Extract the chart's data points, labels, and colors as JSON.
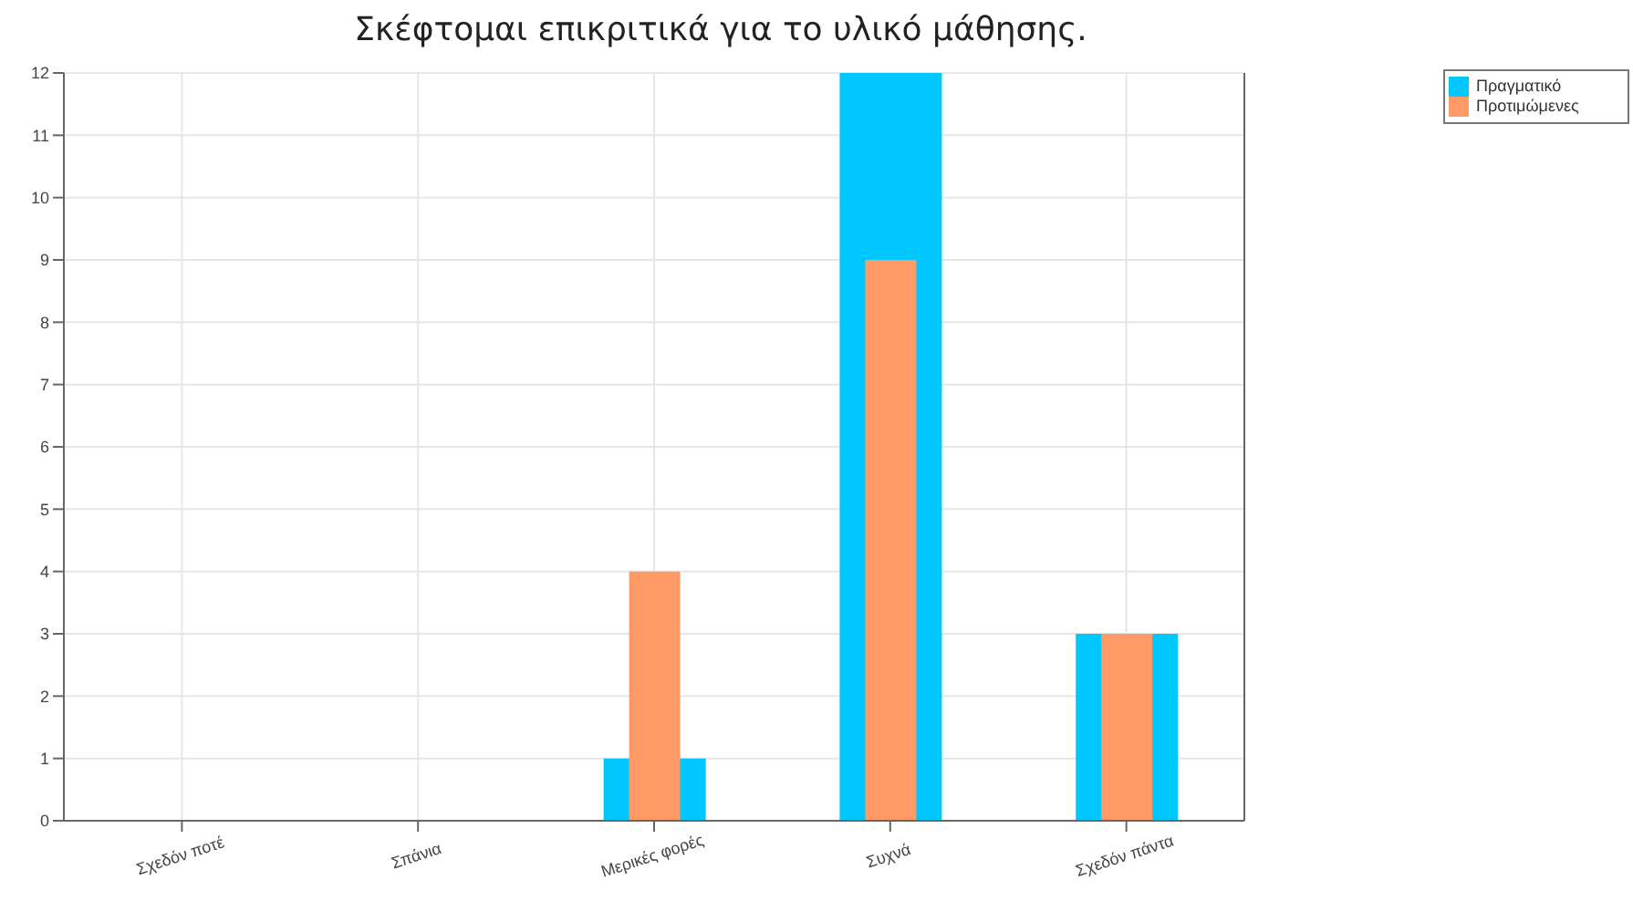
{
  "chart_data": {
    "type": "bar",
    "title": "Σκέφτομαι επικριτικά για το υλικό μάθησης.",
    "categories": [
      "Σχεδόν ποτέ",
      "Σπάνια",
      "Μερικές φορές",
      "Συχνά",
      "Σχεδόν πάντα"
    ],
    "series": [
      {
        "name": "Πραγματικό",
        "color": "#00c8ff",
        "values": [
          0,
          0,
          1,
          12,
          3
        ]
      },
      {
        "name": "Προτιμώμενες",
        "color": "#ff9966",
        "values": [
          0,
          0,
          4,
          9,
          3
        ]
      }
    ],
    "ylim": [
      0,
      12
    ],
    "yticks": [
      0,
      1,
      2,
      3,
      4,
      5,
      6,
      7,
      8,
      9,
      10,
      11,
      12
    ],
    "grid": true,
    "legend": "top right"
  }
}
